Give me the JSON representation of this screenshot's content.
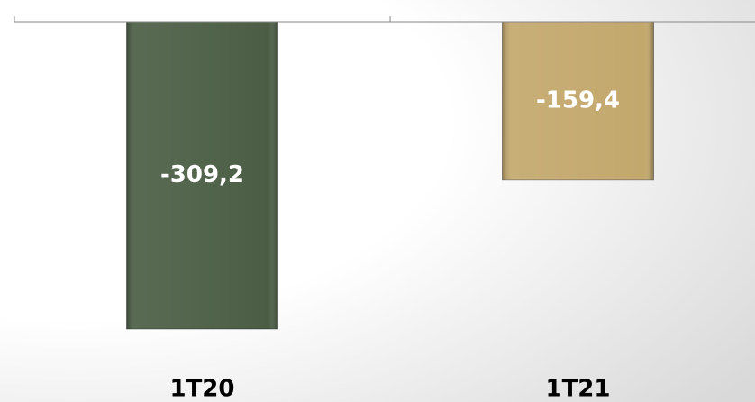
{
  "chart_data": {
    "type": "bar",
    "categories": [
      "1T20",
      "1T21"
    ],
    "values": [
      -309.2,
      -159.4
    ],
    "value_labels": [
      "-309,2",
      "-159,4"
    ],
    "colors": [
      "#4b5e45",
      "#c3a86c"
    ],
    "ylim": [
      -350,
      0
    ]
  }
}
